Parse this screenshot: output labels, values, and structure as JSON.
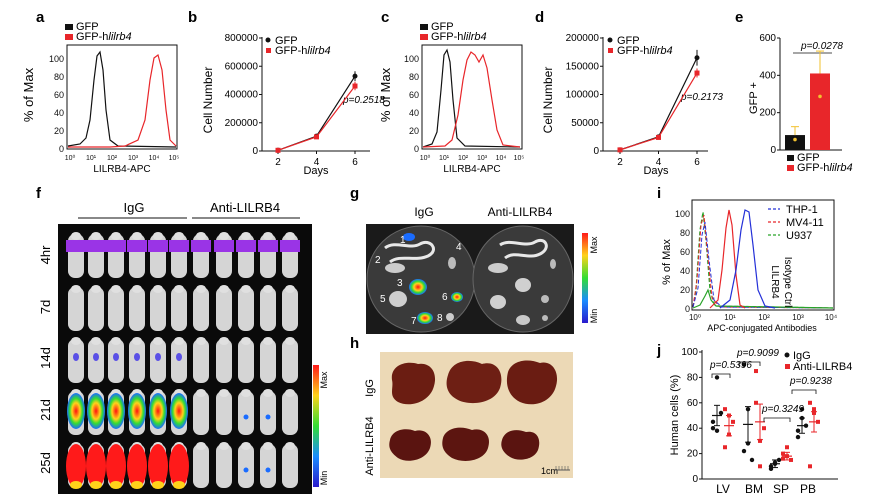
{
  "panels": {
    "a": {
      "letter": "a",
      "legend": [
        "GFP",
        "GFP-hlilrb4"
      ],
      "legend_prefix": "GFP-h",
      "legend_gene": "lilrb4",
      "ylabel": "% of Max",
      "xlabel": "LILRB4-APC",
      "yticks": [
        "0",
        "20",
        "40",
        "60",
        "80",
        "100"
      ],
      "xticks": [
        "10⁰",
        "10¹",
        "10²",
        "10³",
        "10⁴",
        "10⁵"
      ]
    },
    "b": {
      "letter": "b",
      "ylabel": "Cell Number",
      "xlabel": "Days",
      "legend_prefix": "GFP-h",
      "legend_gene": "lilrb4",
      "yticks": [
        "0",
        "200000",
        "400000",
        "600000",
        "800000"
      ],
      "xticks": [
        "2",
        "4",
        "6"
      ],
      "pvalue": "p=0.2518"
    },
    "c": {
      "letter": "c",
      "ylabel": "% of Max",
      "xlabel": "LILRB4-APC",
      "legend_prefix": "GFP-h",
      "legend_gene": "lilrb4",
      "yticks": [
        "0",
        "20",
        "40",
        "60",
        "80",
        "100"
      ]
    },
    "d": {
      "letter": "d",
      "ylabel": "Cell Number",
      "xlabel": "Days",
      "legend_prefix": "GFP-h",
      "legend_gene": "lilrb4",
      "yticks": [
        "0",
        "50000",
        "100000",
        "150000",
        "200000"
      ],
      "xticks": [
        "2",
        "4",
        "6"
      ],
      "pvalue": "p=0.2173"
    },
    "e": {
      "letter": "e",
      "ylabel": "GFP +",
      "yticks": [
        "0",
        "200",
        "400",
        "600"
      ],
      "pvalue": "p=0.0278",
      "legend_prefix": "GFP-h",
      "legend_gene": "lilrb4"
    },
    "f": {
      "letter": "f",
      "groups": [
        "IgG",
        "Anti-LILRB4"
      ],
      "timepoints": [
        "4hr",
        "7d",
        "14d",
        "21d",
        "25d"
      ],
      "scale_max": "Max",
      "scale_min": "Min"
    },
    "g": {
      "letter": "g",
      "groups": [
        "IgG",
        "Anti-LILRB4"
      ],
      "organs": [
        "1",
        "2",
        "3",
        "4",
        "5",
        "6",
        "7",
        "8"
      ],
      "scale_max": "Max",
      "scale_min": "Min"
    },
    "h": {
      "letter": "h",
      "rows": [
        "IgG",
        "Anti-LILRB4"
      ],
      "scalebar": "1cm"
    },
    "i": {
      "letter": "i",
      "legend": [
        "THP-1",
        "MV4-11",
        "U937"
      ],
      "side_labels": [
        "LILRB4",
        "Isotype Ctrl"
      ],
      "ylabel": "% of Max",
      "xlabel": "APC-conjugated Antibodies",
      "yticks": [
        "0",
        "20",
        "40",
        "60",
        "80",
        "100"
      ],
      "xticks": [
        "10⁰",
        "10¹",
        "10²",
        "10³",
        "10⁴"
      ]
    },
    "j": {
      "letter": "j",
      "legend": [
        "IgG",
        "Anti-LILRB4"
      ],
      "ylabel": "Human cells (%)",
      "yticks": [
        "0",
        "20",
        "40",
        "60",
        "80",
        "100"
      ],
      "categories": [
        "LV",
        "BM",
        "SP",
        "PB"
      ],
      "pvalues": [
        "p=0.5396",
        "p=0.9099",
        "p=0.3249",
        "p=0.9238"
      ]
    }
  },
  "colors": {
    "black": "#111111",
    "red": "#e8262a",
    "blue": "#2430d8",
    "green": "#29a329",
    "yellow": "#f2c12e"
  },
  "chart_data": [
    {
      "panel": "b",
      "type": "line",
      "x": [
        2,
        4,
        6
      ],
      "xlabel": "Days",
      "ylabel": "Cell Number",
      "ylim": [
        0,
        800000
      ],
      "series": [
        {
          "name": "GFP",
          "values": [
            5000,
            105000,
            530000
          ],
          "err": [
            2000,
            8000,
            35000
          ]
        },
        {
          "name": "GFP-hlilrb4",
          "values": [
            5000,
            100000,
            460000
          ],
          "err": [
            2000,
            8000,
            30000
          ]
        }
      ]
    },
    {
      "panel": "d",
      "type": "line",
      "x": [
        2,
        4,
        6
      ],
      "xlabel": "Days",
      "ylabel": "Cell Number",
      "ylim": [
        0,
        200000
      ],
      "series": [
        {
          "name": "GFP",
          "values": [
            2000,
            25000,
            165000
          ],
          "err": [
            500,
            2000,
            14000
          ]
        },
        {
          "name": "GFP-hlilrb4",
          "values": [
            2000,
            24000,
            138000
          ],
          "err": [
            500,
            2000,
            8000
          ]
        }
      ]
    },
    {
      "panel": "e",
      "type": "bar",
      "categories": [
        "GFP",
        "GFP-hlilrb4"
      ],
      "ylabel": "GFP +",
      "ylim": [
        0,
        600
      ],
      "values": [
        80,
        410
      ],
      "err": [
        45,
        120
      ]
    },
    {
      "panel": "j",
      "type": "scatter",
      "categories": [
        "LV",
        "BM",
        "SP",
        "PB"
      ],
      "ylabel": "Human cells (%)",
      "ylim": [
        0,
        100
      ],
      "series": [
        {
          "name": "IgG",
          "means": [
            50,
            43,
            12,
            42
          ],
          "sem": [
            8,
            14,
            3,
            6
          ],
          "points": [
            [
              40,
              80,
              52,
              45,
              38
            ],
            [
              90,
              28,
              15,
              22,
              55
            ],
            [
              8,
              12,
              15,
              10,
              13
            ],
            [
              38,
              55,
              42,
              33,
              48
            ]
          ]
        },
        {
          "name": "Anti-LILRB4",
          "means": [
            42,
            45,
            18,
            45
          ],
          "sem": [
            8,
            14,
            3,
            8
          ],
          "points": [
            [
              25,
              50,
              45,
              55,
              35
            ],
            [
              85,
              10,
              40,
              60,
              30
            ],
            [
              20,
              25,
              15,
              16,
              18
            ],
            [
              10,
              52,
              45,
              60,
              55
            ]
          ]
        }
      ]
    }
  ]
}
